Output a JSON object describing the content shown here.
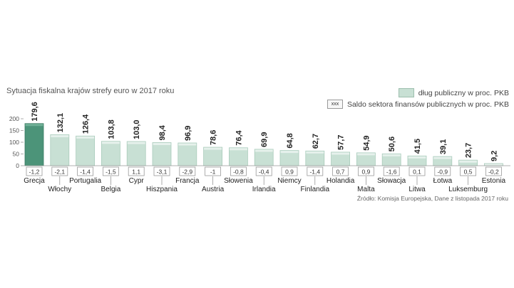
{
  "chart_data": {
    "type": "bar",
    "title": "Sytuacja fiskalna krajów strefy euro w 2017 roku",
    "categories": [
      "Grecja",
      "Włochy",
      "Portugalia",
      "Belgia",
      "Cypr",
      "Hiszpania",
      "Francja",
      "Austria",
      "Słowenia",
      "Irlandia",
      "Niemcy",
      "Finlandia",
      "Holandia",
      "Malta",
      "Słowacja",
      "Litwa",
      "Łotwa",
      "Luksemburg",
      "Estonia"
    ],
    "series": [
      {
        "name": "dług publiczny w proc. PKB",
        "values": [
          179.6,
          132.1,
          126.4,
          103.8,
          103.0,
          98.4,
          96.9,
          78.6,
          76.4,
          69.9,
          64.8,
          62.7,
          57.7,
          54.9,
          50.6,
          41.5,
          39.1,
          23.7,
          9.2
        ],
        "labels": [
          "179,6",
          "132,1",
          "126,4",
          "103,8",
          "103,0",
          "98,4",
          "96,9",
          "78,6",
          "76,4",
          "69,9",
          "64,8",
          "62,7",
          "57,7",
          "54,9",
          "50,6",
          "41,5",
          "39,1",
          "23,7",
          "9,2"
        ]
      },
      {
        "name": "Saldo sektora finansów publicznych w proc. PKB",
        "values": [
          -1.2,
          -2.1,
          -1.4,
          -1.5,
          1.1,
          -3.1,
          -2.9,
          -1,
          -0.8,
          -0.4,
          0.9,
          -1.4,
          0.7,
          0.9,
          -1.6,
          0.1,
          -0.9,
          0.5,
          -0.2
        ],
        "labels": [
          "-1,2",
          "-2,1",
          "-1,4",
          "-1,5",
          "1,1",
          "-3,1",
          "-2,9",
          "-1",
          "-0,8",
          "-0,4",
          "0,9",
          "-1,4",
          "0,7",
          "0,9",
          "-1,6",
          "0,1",
          "-0,9",
          "0,5",
          "-0,2"
        ]
      }
    ],
    "yticks": [
      "0",
      "50",
      "100",
      "150",
      "200"
    ],
    "ylim": [
      0,
      200
    ],
    "legend": {
      "debt": "dług publiczny w proc. PKB",
      "balance_marker": "xxx",
      "balance": "Saldo sektora finansów publicznych w proc. PKB"
    },
    "source": "Źródło: Komisja Europejska, Dane z listopada 2017 roku",
    "colors": {
      "highlight": "#4c9479",
      "bar": "#c8e0d4",
      "bar_top": "#e6f1ec",
      "axis": "#999999"
    }
  }
}
